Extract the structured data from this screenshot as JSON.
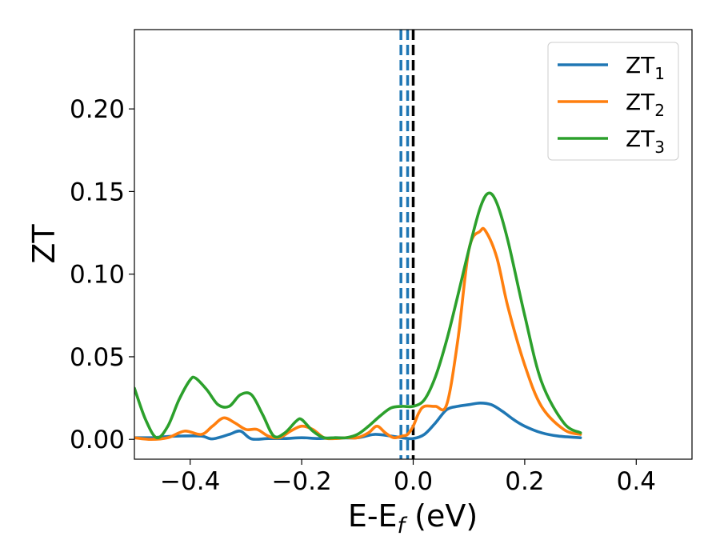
{
  "chart_data": {
    "type": "line",
    "title": "",
    "xlabel": {
      "main": "E-E",
      "sub": "f",
      "tail": " (eV)"
    },
    "ylabel": "ZT",
    "xlim": [
      -0.5,
      0.5
    ],
    "ylim": [
      -0.012,
      0.248
    ],
    "xticks": [
      -0.4,
      -0.2,
      0.0,
      0.2,
      0.4
    ],
    "xtick_labels": [
      "−0.4",
      "−0.2",
      "0.0",
      "0.2",
      "0.4"
    ],
    "yticks": [
      0.0,
      0.05,
      0.1,
      0.15,
      0.2
    ],
    "ytick_labels": [
      "0.00",
      "0.05",
      "0.10",
      "0.15",
      "0.20"
    ],
    "grid": false,
    "legend_position": "top-right",
    "vlines": [
      {
        "x": -0.022,
        "color": "#1f77b4",
        "style": "dashed"
      },
      {
        "x": -0.01,
        "color": "#1f77b4",
        "style": "dashed"
      },
      {
        "x": 0.0,
        "color": "#000000",
        "style": "dashed"
      }
    ],
    "series": [
      {
        "name": "ZT",
        "sub": "1",
        "color": "#1f77b4",
        "x": [
          -0.5,
          -0.47,
          -0.45,
          -0.42,
          -0.38,
          -0.36,
          -0.33,
          -0.31,
          -0.29,
          -0.26,
          -0.23,
          -0.2,
          -0.17,
          -0.14,
          -0.1,
          -0.07,
          -0.04,
          -0.02,
          0.0,
          0.02,
          0.04,
          0.06,
          0.08,
          0.1,
          0.12,
          0.14,
          0.16,
          0.18,
          0.2,
          0.23,
          0.26,
          0.3
        ],
        "y": [
          0.001,
          0.001,
          0.0015,
          0.002,
          0.002,
          0.0003,
          0.003,
          0.005,
          0.0003,
          0.0005,
          0.0005,
          0.001,
          0.0005,
          0.001,
          0.001,
          0.003,
          0.002,
          0.001,
          0.0005,
          0.003,
          0.01,
          0.018,
          0.02,
          0.021,
          0.022,
          0.021,
          0.017,
          0.012,
          0.008,
          0.004,
          0.002,
          0.001
        ]
      },
      {
        "name": "ZT",
        "sub": "2",
        "color": "#ff7f0e",
        "x": [
          -0.5,
          -0.47,
          -0.44,
          -0.41,
          -0.38,
          -0.36,
          -0.34,
          -0.32,
          -0.3,
          -0.28,
          -0.26,
          -0.24,
          -0.22,
          -0.2,
          -0.18,
          -0.16,
          -0.14,
          -0.12,
          -0.1,
          -0.08,
          -0.065,
          -0.05,
          -0.035,
          -0.02,
          -0.01,
          0.0,
          0.01,
          0.02,
          0.04,
          0.06,
          0.08,
          0.1,
          0.12,
          0.13,
          0.15,
          0.17,
          0.2,
          0.23,
          0.27,
          0.3
        ],
        "y": [
          0.001,
          0.0,
          0.001,
          0.005,
          0.003,
          0.008,
          0.013,
          0.01,
          0.006,
          0.006,
          0.002,
          0.001,
          0.005,
          0.008,
          0.006,
          0.001,
          0.0005,
          0.001,
          0.001,
          0.004,
          0.008,
          0.004,
          0.001,
          0.002,
          0.003,
          0.008,
          0.016,
          0.02,
          0.02,
          0.021,
          0.06,
          0.115,
          0.126,
          0.126,
          0.11,
          0.08,
          0.045,
          0.02,
          0.006,
          0.003
        ]
      },
      {
        "name": "ZT",
        "sub": "3",
        "color": "#2ca02c",
        "x": [
          -0.5,
          -0.48,
          -0.46,
          -0.44,
          -0.42,
          -0.4,
          -0.39,
          -0.37,
          -0.35,
          -0.33,
          -0.31,
          -0.29,
          -0.27,
          -0.25,
          -0.23,
          -0.21,
          -0.2,
          -0.18,
          -0.16,
          -0.14,
          -0.12,
          -0.1,
          -0.08,
          -0.06,
          -0.04,
          -0.02,
          0.0,
          0.02,
          0.04,
          0.06,
          0.08,
          0.1,
          0.12,
          0.135,
          0.15,
          0.17,
          0.2,
          0.23,
          0.27,
          0.3
        ],
        "y": [
          0.031,
          0.012,
          0.001,
          0.008,
          0.024,
          0.036,
          0.037,
          0.03,
          0.021,
          0.02,
          0.027,
          0.027,
          0.015,
          0.002,
          0.004,
          0.011,
          0.012,
          0.005,
          0.001,
          0.001,
          0.001,
          0.003,
          0.008,
          0.014,
          0.019,
          0.02,
          0.02,
          0.024,
          0.038,
          0.06,
          0.087,
          0.115,
          0.14,
          0.149,
          0.143,
          0.12,
          0.075,
          0.035,
          0.01,
          0.004
        ]
      }
    ]
  }
}
